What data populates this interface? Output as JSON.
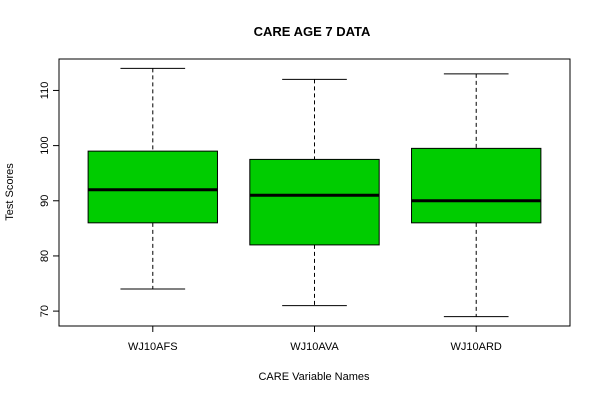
{
  "chart_data": {
    "type": "box",
    "title": "CARE AGE 7 DATA",
    "xlabel": "CARE Variable Names",
    "ylabel": "Test Scores",
    "ylim": [
      67.3,
      115.7
    ],
    "yticks": [
      70,
      80,
      90,
      100,
      110
    ],
    "grid": false,
    "box_color": "#00cc00",
    "categories": [
      "WJ10AFS",
      "WJ10AVA",
      "WJ10ARD"
    ],
    "boxes": [
      {
        "category": "WJ10AFS",
        "min": 74,
        "q1": 86,
        "median": 92,
        "q3": 99,
        "max": 114
      },
      {
        "category": "WJ10AVA",
        "min": 71,
        "q1": 82,
        "median": 91,
        "q3": 97.5,
        "max": 112
      },
      {
        "category": "WJ10ARD",
        "min": 69,
        "q1": 86,
        "median": 90,
        "q3": 99.5,
        "max": 113
      }
    ]
  }
}
